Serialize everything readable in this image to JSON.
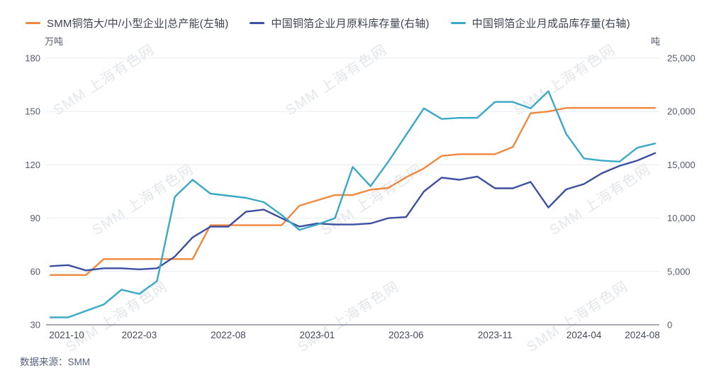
{
  "legend": [
    {
      "label": "SMM铜箔大/中/小型企业|总产能(左轴)",
      "color": "#f0883f"
    },
    {
      "label": "中国铜箔企业月原料库存量(右轴)",
      "color": "#3d4fa1"
    },
    {
      "label": "中国铜箔企业月成品库存量(右轴)",
      "color": "#3aa8c6"
    }
  ],
  "left_axis": {
    "unit": "万吨",
    "tick_labels": [
      "180",
      "150",
      "120",
      "90",
      "60",
      "30"
    ],
    "tick_values": [
      180,
      150,
      120,
      90,
      60,
      30
    ]
  },
  "right_axis": {
    "unit": "吨",
    "tick_labels": [
      "25,000",
      "20,000",
      "15,000",
      "10,000",
      "5,000",
      "0"
    ],
    "tick_values": [
      25000,
      20000,
      15000,
      10000,
      5000,
      0
    ]
  },
  "x_axis": {
    "labels": [
      "2021-10",
      "2022-03",
      "2022-08",
      "2023-01",
      "2023-06",
      "2023-11",
      "2024-04",
      "2024-08"
    ]
  },
  "source": "数据来源：SMM",
  "watermark": "SMM 上海有色网",
  "chart_data": {
    "type": "line",
    "x": [
      "2021-10",
      "2021-11",
      "2021-12",
      "2022-01",
      "2022-02",
      "2022-03",
      "2022-04",
      "2022-05",
      "2022-06",
      "2022-07",
      "2022-08",
      "2022-09",
      "2022-10",
      "2022-11",
      "2022-12",
      "2023-01",
      "2023-02",
      "2023-03",
      "2023-04",
      "2023-05",
      "2023-06",
      "2023-07",
      "2023-08",
      "2023-09",
      "2023-10",
      "2023-11",
      "2023-12",
      "2024-01",
      "2024-02",
      "2024-03",
      "2024-04",
      "2024-05",
      "2024-06",
      "2024-07",
      "2024-08"
    ],
    "series": [
      {
        "name": "SMM铜箔大/中/小型企业|总产能(左轴)",
        "axis": "left",
        "color": "#f0883f",
        "values": [
          58,
          58,
          58,
          67,
          67,
          67,
          67,
          67,
          67,
          86,
          86,
          86,
          86,
          86,
          97,
          100,
          103,
          103,
          106,
          107,
          113,
          118,
          125,
          126,
          126,
          126,
          130,
          149,
          150,
          152,
          152,
          152,
          152,
          152,
          152
        ]
      },
      {
        "name": "中国铜箔企业月原料库存量(右轴)",
        "axis": "right",
        "color": "#3d4fa1",
        "values": [
          5500,
          5600,
          5100,
          5300,
          5300,
          5200,
          5300,
          6400,
          8200,
          9200,
          9200,
          10600,
          10800,
          10000,
          9200,
          9500,
          9400,
          9400,
          9500,
          10000,
          10100,
          12500,
          13800,
          13600,
          13900,
          12800,
          12800,
          13400,
          11000,
          12700,
          13200,
          14200,
          14900,
          15400,
          16100
        ]
      },
      {
        "name": "中国铜箔企业月成品库存量(右轴)",
        "axis": "right",
        "color": "#3aa8c6",
        "values": [
          700,
          700,
          1300,
          1900,
          3300,
          2900,
          4100,
          12000,
          13600,
          12300,
          12100,
          11900,
          11500,
          10300,
          8900,
          9400,
          10000,
          14800,
          13000,
          15300,
          17800,
          20300,
          19300,
          19400,
          19400,
          20900,
          20900,
          20300,
          21900,
          17900,
          15600,
          15400,
          15300,
          16600,
          17000
        ]
      }
    ],
    "left_ylim": [
      30,
      180
    ],
    "right_ylim": [
      0,
      25000
    ],
    "grid": true,
    "legend_position": "top"
  }
}
